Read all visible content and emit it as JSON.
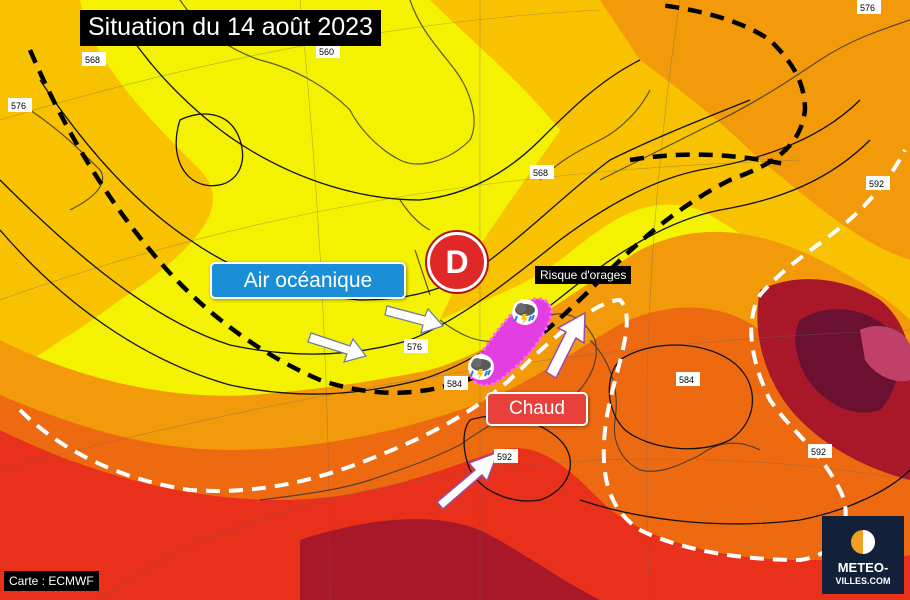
{
  "title": "Situation du 14 août 2023",
  "labels": {
    "air_oceanique": "Air océanique",
    "chaud": "Chaud",
    "risque_orages": "Risque d'orages",
    "depression": "D"
  },
  "credit": "Carte : ECMWF",
  "logo": {
    "line1": "METEO-",
    "line2": "VILLES.COM"
  },
  "isohypses": [
    "576",
    "568",
    "560",
    "568",
    "576",
    "584",
    "592",
    "584",
    "592",
    "592",
    "576"
  ],
  "colors": {
    "cool_yellow": "#f4f200",
    "light_orange": "#f8c200",
    "orange": "#f39a0a",
    "dark_orange": "#ee6a10",
    "red": "#e8301a",
    "dark_red": "#a81828",
    "purple": "#6b1030",
    "storm_magenta": "#e23ee2",
    "ocean_label": "#1a8fd8",
    "chaud_label": "#e8403a",
    "depression": "#e02828"
  }
}
